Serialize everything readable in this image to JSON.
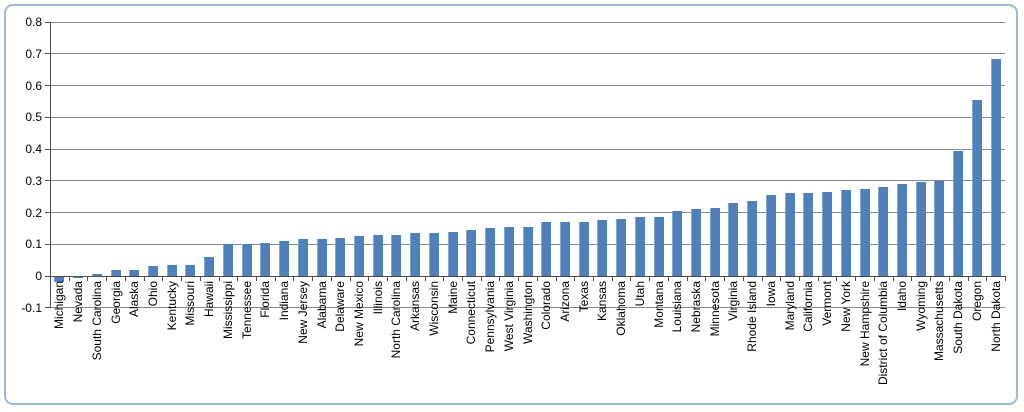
{
  "chart_data": {
    "type": "bar",
    "title": "",
    "xlabel": "",
    "ylabel": "",
    "ylim": [
      -0.1,
      0.8
    ],
    "ytick_step": 0.1,
    "grid": true,
    "legend": "none",
    "bar_orientation": "vertical",
    "x_label_rotation_degrees": 90,
    "ytick_labels": [
      "0.8",
      "0.7",
      "0.6",
      "0.5",
      "0.4",
      "0.3",
      "0.2",
      "0.1",
      "0",
      "-0.1"
    ],
    "categories": [
      "Michigan",
      "Nevada",
      "South Carolina",
      "Georgia",
      "Alaska",
      "Ohio",
      "Kentucky",
      "Missouri",
      "Hawaii",
      "Mississippi",
      "Tennessee",
      "Florida",
      "Indiana",
      "New Jersey",
      "Alabama",
      "Delaware",
      "New Mexico",
      "Illinois",
      "North Carolina",
      "Arkansas",
      "Wisconsin",
      "Maine",
      "Connecticut",
      "Pennsylvania",
      "West Virginia",
      "Washington",
      "Colorado",
      "Arizona",
      "Texas",
      "Kansas",
      "Oklahoma",
      "Utah",
      "Montana",
      "Louisiana",
      "Nebraska",
      "Minnesota",
      "Virginia",
      "Rhode Island",
      "Iowa",
      "Maryland",
      "California",
      "Vermont",
      "New York",
      "New Hampshire",
      "District of Columbia",
      "Idaho",
      "Wyoming",
      "Massachusetts",
      "South Dakota",
      "Oregon",
      "North Dakota"
    ],
    "values": [
      -0.02,
      -0.005,
      0.005,
      0.02,
      0.02,
      0.03,
      0.035,
      0.035,
      0.06,
      0.1,
      0.1,
      0.105,
      0.11,
      0.115,
      0.115,
      0.12,
      0.125,
      0.13,
      0.13,
      0.135,
      0.135,
      0.14,
      0.145,
      0.15,
      0.155,
      0.155,
      0.17,
      0.17,
      0.17,
      0.175,
      0.18,
      0.185,
      0.185,
      0.205,
      0.21,
      0.215,
      0.23,
      0.235,
      0.255,
      0.26,
      0.26,
      0.265,
      0.27,
      0.275,
      0.28,
      0.29,
      0.295,
      0.3,
      0.395,
      0.555,
      0.685
    ],
    "colors": {
      "bar_fill": "#4e80bc",
      "bar_highlight": "#85a6d2",
      "gridline": "#8a8a8a",
      "axis_line": "#4d4d4d",
      "text": "#000000",
      "chart_border": "#9cb8da",
      "background": "#ffffff"
    }
  }
}
